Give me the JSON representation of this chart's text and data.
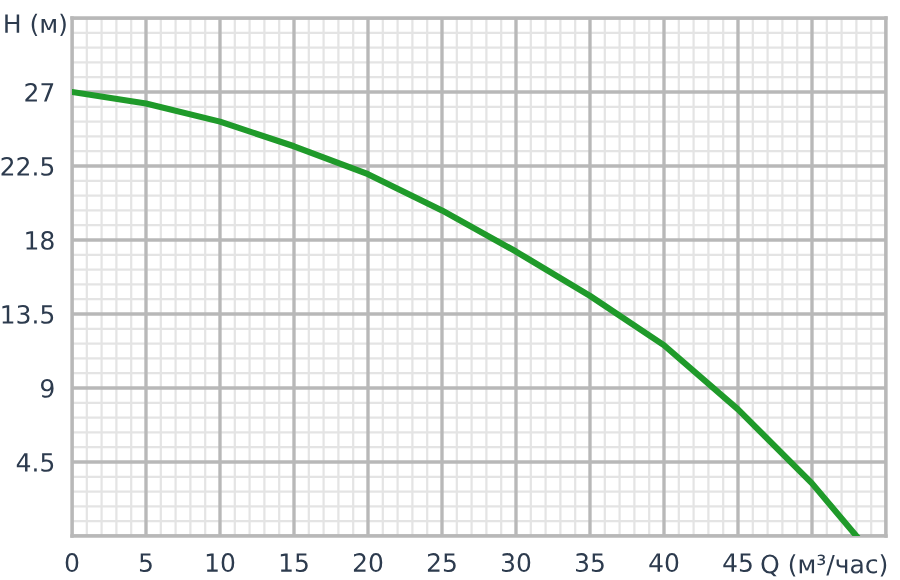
{
  "chart_data": {
    "type": "line",
    "xlabel": "Q (м³/час)",
    "ylabel": "H (м)",
    "x": [
      0,
      5,
      10,
      15,
      20,
      25,
      30,
      35,
      40,
      45,
      50,
      53
    ],
    "series": [
      {
        "color": "#1f9a2a",
        "values": [
          27,
          26.3,
          25.2,
          23.7,
          22.0,
          19.8,
          17.3,
          14.6,
          11.6,
          7.7,
          3.2,
          0
        ]
      }
    ],
    "xlim": [
      0,
      55
    ],
    "xticks": [
      0,
      5,
      10,
      15,
      20,
      25,
      30,
      35,
      40,
      45
    ],
    "ylim": [
      0,
      31.5
    ],
    "yticks": [
      4.5,
      9,
      13.5,
      18,
      22.5,
      27
    ],
    "grid": true,
    "legend": false,
    "marker": "none",
    "line_style": "solid"
  }
}
